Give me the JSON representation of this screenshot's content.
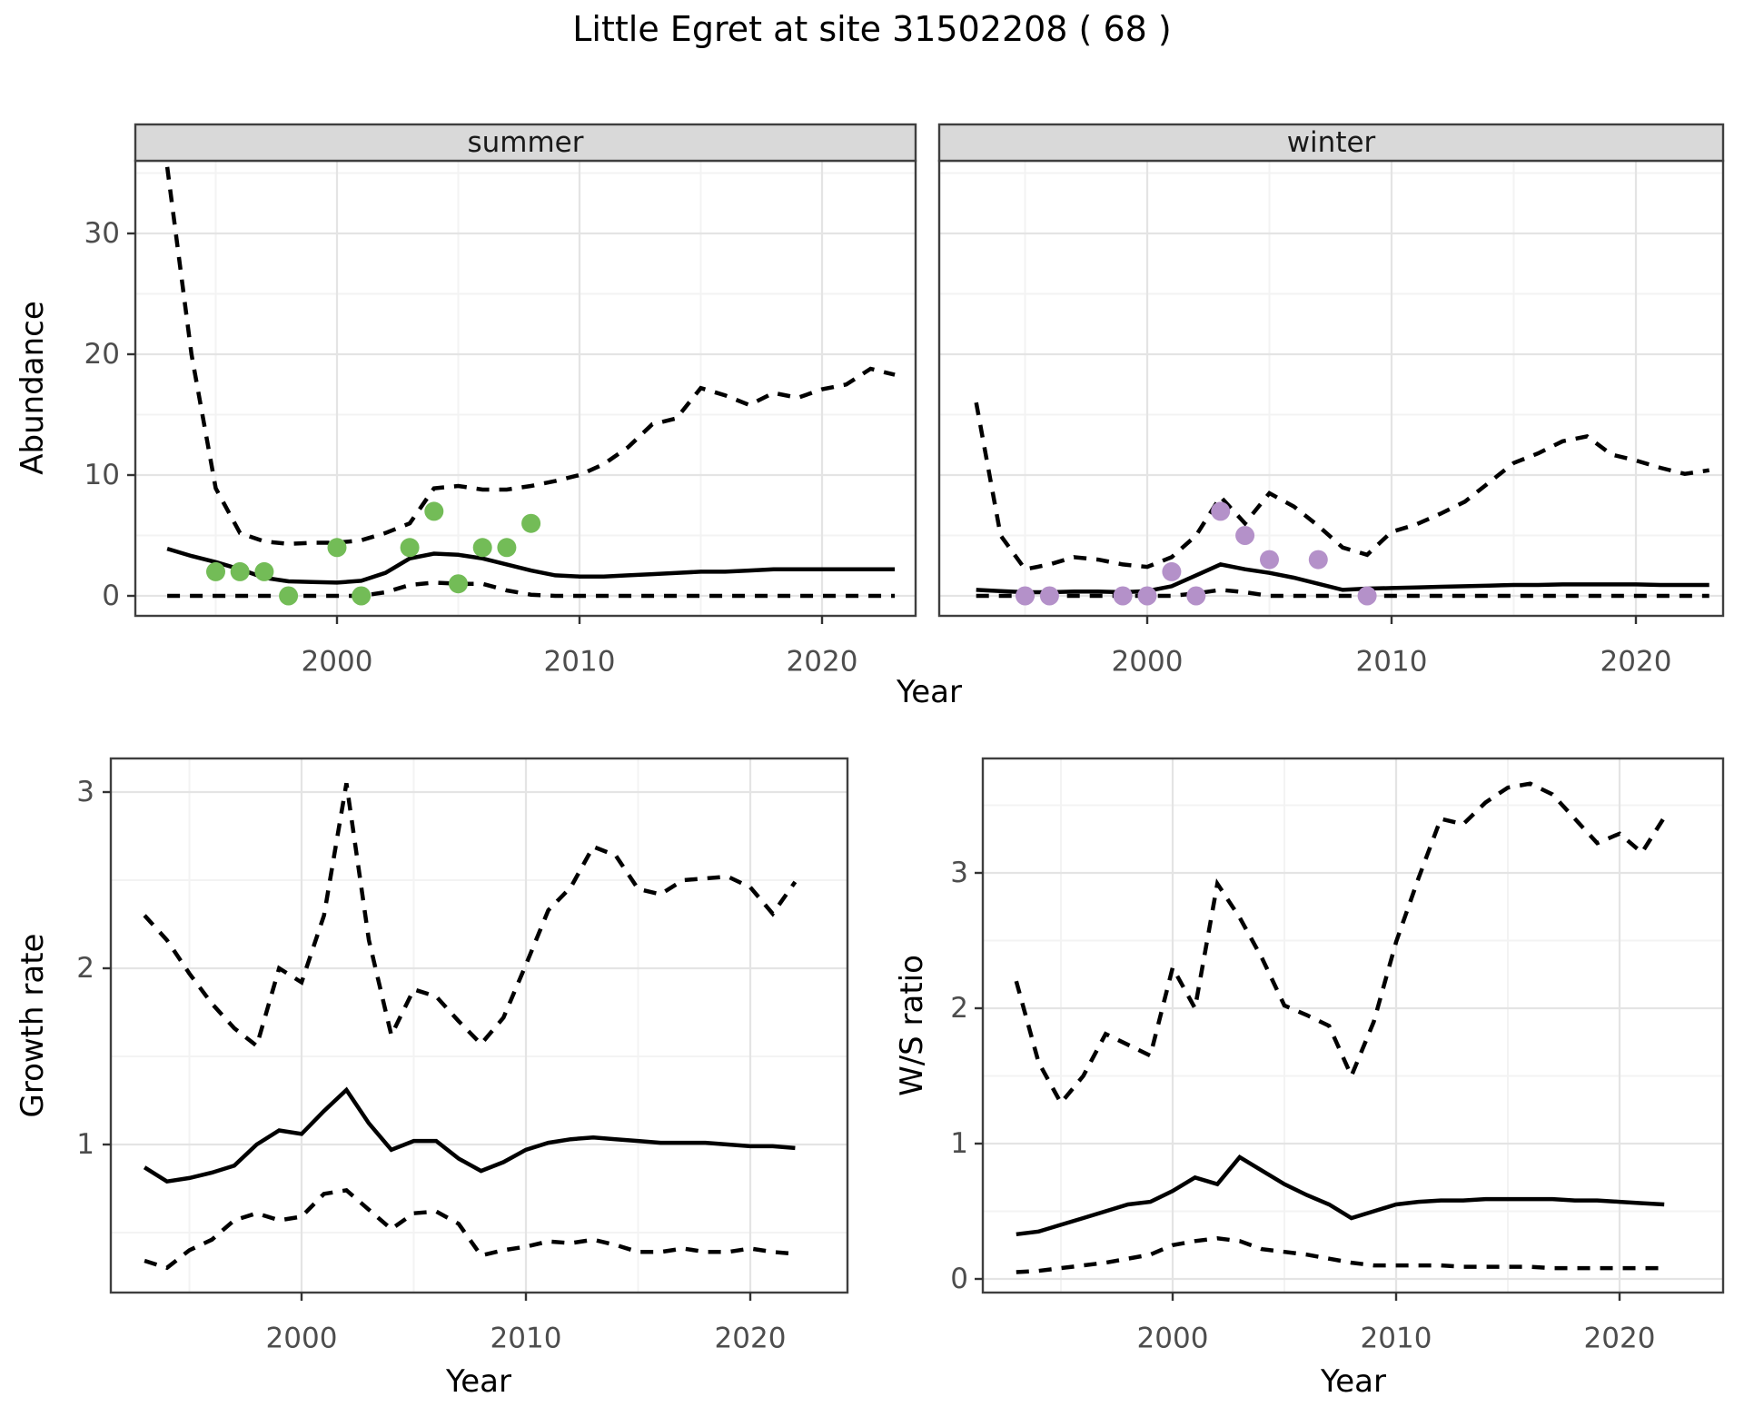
{
  "title": "Little Egret at site 31502208 ( 68 )",
  "axis_titles": {
    "abundance": "Abundance",
    "growth": "Growth rate",
    "ws": "W/S ratio",
    "year_top": "Year",
    "year_bottom_left": "Year",
    "year_bottom_right": "Year"
  },
  "colors": {
    "summer_point": "#73BC57",
    "winter_point": "#B491C9",
    "line": "#000000",
    "tick_text": "#4D4D4D",
    "strip_bg": "#D9D9D9",
    "panel_border": "#3F3F3F",
    "grid_major": "#E4E4E4",
    "grid_minor": "#F3F3F3"
  },
  "chart_data": [
    {
      "id": "abundance-summer",
      "type": "line",
      "facet_label": "summer",
      "xlabel": "Year",
      "ylabel": "Abundance",
      "x_ticks": [
        2000,
        2010,
        2020
      ],
      "y_ticks": [
        0,
        10,
        20,
        30
      ],
      "xlim": [
        1991.6,
        2024.0
      ],
      "ylim": [
        -1.65,
        36.0
      ],
      "legend": "none",
      "grid": true,
      "years": [
        1993,
        1994,
        1995,
        1996,
        1997,
        1998,
        1999,
        2000,
        2001,
        2002,
        2003,
        2004,
        2005,
        2006,
        2007,
        2008,
        2009,
        2010,
        2011,
        2012,
        2013,
        2014,
        2015,
        2016,
        2017,
        2018,
        2019,
        2020,
        2021,
        2022,
        2023
      ],
      "series": [
        {
          "name": "upper_95ci",
          "style": "dashed",
          "values": [
            35.5,
            20.0,
            8.9,
            5.2,
            4.5,
            4.3,
            4.4,
            4.4,
            4.6,
            5.2,
            6.0,
            8.9,
            9.1,
            8.8,
            8.8,
            9.1,
            9.5,
            10.0,
            10.9,
            12.3,
            14.2,
            14.7,
            17.2,
            16.6,
            15.8,
            16.8,
            16.4,
            17.1,
            17.5,
            18.8,
            18.3
          ]
        },
        {
          "name": "median",
          "style": "solid",
          "values": [
            3.9,
            3.3,
            2.8,
            2.2,
            1.5,
            1.2,
            1.15,
            1.1,
            1.25,
            1.9,
            3.1,
            3.5,
            3.4,
            3.1,
            2.6,
            2.1,
            1.7,
            1.6,
            1.6,
            1.7,
            1.8,
            1.9,
            2.0,
            2.0,
            2.1,
            2.2,
            2.2,
            2.2,
            2.2,
            2.2,
            2.2
          ]
        },
        {
          "name": "lower_95ci",
          "style": "dashed",
          "values": [
            0,
            0,
            0,
            0,
            0,
            0,
            0,
            0,
            0,
            0.3,
            0.9,
            1.1,
            1.0,
            1.0,
            0.45,
            0.1,
            0,
            0,
            0,
            0,
            0,
            0,
            0,
            0,
            0,
            0,
            0,
            0,
            0,
            0,
            0
          ]
        }
      ],
      "points": {
        "name": "observed_counts",
        "color_key": "summer_point",
        "years": [
          1995,
          1996,
          1997,
          1998,
          2000,
          2001,
          2003,
          2004,
          2005,
          2006,
          2007,
          2008
        ],
        "values": [
          2,
          2,
          2,
          0,
          4,
          0,
          4,
          7,
          1,
          4,
          4,
          6
        ]
      }
    },
    {
      "id": "abundance-winter",
      "type": "line",
      "facet_label": "winter",
      "xlabel": "Year",
      "ylabel": "Abundance",
      "x_ticks": [
        2000,
        2010,
        2020
      ],
      "y_ticks": [
        0,
        10,
        20,
        30
      ],
      "xlim": [
        1991.5,
        2023.7
      ],
      "ylim": [
        -1.65,
        36.0
      ],
      "legend": "none",
      "grid": true,
      "years": [
        1993,
        1994,
        1995,
        1996,
        1997,
        1998,
        1999,
        2000,
        2001,
        2002,
        2003,
        2004,
        2005,
        2006,
        2007,
        2008,
        2009,
        2010,
        2011,
        2012,
        2013,
        2014,
        2015,
        2016,
        2017,
        2018,
        2019,
        2020,
        2021,
        2022,
        2023
      ],
      "series": [
        {
          "name": "upper_95ci",
          "style": "dashed",
          "values": [
            16.0,
            5.0,
            2.2,
            2.6,
            3.2,
            3.0,
            2.6,
            2.4,
            3.2,
            5.0,
            8.2,
            6.0,
            8.5,
            7.4,
            5.8,
            4.0,
            3.4,
            5.3,
            5.9,
            6.8,
            7.8,
            9.4,
            11.0,
            11.8,
            12.8,
            13.2,
            11.7,
            11.2,
            10.6,
            10.1,
            10.4
          ]
        },
        {
          "name": "median",
          "style": "solid",
          "values": [
            0.5,
            0.4,
            0.3,
            0.3,
            0.35,
            0.35,
            0.3,
            0.4,
            0.8,
            1.7,
            2.6,
            2.2,
            1.9,
            1.5,
            1.0,
            0.5,
            0.6,
            0.65,
            0.7,
            0.75,
            0.8,
            0.85,
            0.9,
            0.9,
            0.95,
            0.95,
            0.95,
            0.95,
            0.9,
            0.9,
            0.9
          ]
        },
        {
          "name": "lower_95ci",
          "style": "dashed",
          "values": [
            0,
            0,
            0,
            0,
            0,
            0,
            0,
            0,
            0,
            0.2,
            0.5,
            0.3,
            0,
            0,
            0,
            0,
            0,
            0,
            0,
            0,
            0,
            0,
            0,
            0,
            0,
            0,
            0,
            0,
            0,
            0,
            0
          ]
        }
      ],
      "points": {
        "name": "observed_counts",
        "color_key": "winter_point",
        "years": [
          1995,
          1996,
          1999,
          2000,
          2001,
          2002,
          2003,
          2004,
          2005,
          2007,
          2009
        ],
        "values": [
          0,
          0,
          0,
          0,
          2,
          0,
          7,
          5,
          3,
          3,
          0
        ]
      }
    },
    {
      "id": "growth-rate",
      "type": "line",
      "facet_label": null,
      "xlabel": "Year",
      "ylabel": "Growth rate",
      "x_ticks": [
        2000,
        2010,
        2020
      ],
      "y_ticks": [
        1,
        2,
        3
      ],
      "xlim": [
        1991.5,
        2024.3
      ],
      "ylim": [
        0.16,
        3.19
      ],
      "legend": "none",
      "grid": true,
      "years": [
        1993,
        1994,
        1995,
        1996,
        1997,
        1998,
        1999,
        2000,
        2001,
        2002,
        2003,
        2004,
        2005,
        2006,
        2007,
        2008,
        2009,
        2010,
        2011,
        2012,
        2013,
        2014,
        2015,
        2016,
        2017,
        2018,
        2019,
        2020,
        2021,
        2022
      ],
      "series": [
        {
          "name": "upper_95ci",
          "style": "dashed",
          "values": [
            2.3,
            2.16,
            1.97,
            1.8,
            1.66,
            1.56,
            2.0,
            1.92,
            2.3,
            3.05,
            2.16,
            1.62,
            1.88,
            1.84,
            1.7,
            1.57,
            1.72,
            2.02,
            2.33,
            2.46,
            2.69,
            2.64,
            2.45,
            2.42,
            2.5,
            2.51,
            2.52,
            2.46,
            2.31,
            2.49
          ]
        },
        {
          "name": "median",
          "style": "solid",
          "values": [
            0.87,
            0.79,
            0.81,
            0.84,
            0.88,
            1.0,
            1.08,
            1.06,
            1.19,
            1.31,
            1.12,
            0.97,
            1.02,
            1.02,
            0.92,
            0.85,
            0.9,
            0.97,
            1.01,
            1.03,
            1.04,
            1.03,
            1.02,
            1.01,
            1.01,
            1.01,
            1.0,
            0.99,
            0.99,
            0.98
          ]
        },
        {
          "name": "lower_95ci",
          "style": "dashed",
          "values": [
            0.34,
            0.3,
            0.4,
            0.46,
            0.57,
            0.61,
            0.57,
            0.59,
            0.72,
            0.74,
            0.63,
            0.52,
            0.61,
            0.62,
            0.55,
            0.37,
            0.4,
            0.42,
            0.45,
            0.44,
            0.46,
            0.43,
            0.39,
            0.39,
            0.41,
            0.39,
            0.39,
            0.41,
            0.39,
            0.38
          ]
        }
      ],
      "points": null
    },
    {
      "id": "ws-ratio",
      "type": "line",
      "facet_label": null,
      "xlabel": "Year",
      "ylabel": "W/S ratio",
      "x_ticks": [
        2000,
        2010,
        2020
      ],
      "y_ticks": [
        0,
        1,
        2,
        3
      ],
      "xlim": [
        1991.5,
        2024.6
      ],
      "ylim": [
        -0.1,
        3.85
      ],
      "legend": "none",
      "grid": true,
      "years": [
        1993,
        1994,
        1995,
        1996,
        1997,
        1998,
        1999,
        2000,
        2001,
        2002,
        2003,
        2004,
        2005,
        2006,
        2007,
        2008,
        2009,
        2010,
        2011,
        2012,
        2013,
        2014,
        2015,
        2016,
        2017,
        2018,
        2019,
        2020,
        2021,
        2022
      ],
      "series": [
        {
          "name": "upper_95ci",
          "style": "dashed",
          "values": [
            2.2,
            1.6,
            1.3,
            1.5,
            1.81,
            1.73,
            1.65,
            2.3,
            2.0,
            2.92,
            2.67,
            2.37,
            2.02,
            1.95,
            1.87,
            1.5,
            1.9,
            2.49,
            2.96,
            3.4,
            3.36,
            3.52,
            3.63,
            3.66,
            3.58,
            3.4,
            3.22,
            3.29,
            3.15,
            3.41
          ]
        },
        {
          "name": "median",
          "style": "solid",
          "values": [
            0.33,
            0.35,
            0.4,
            0.45,
            0.5,
            0.55,
            0.57,
            0.65,
            0.75,
            0.7,
            0.9,
            0.8,
            0.7,
            0.62,
            0.55,
            0.45,
            0.5,
            0.55,
            0.57,
            0.58,
            0.58,
            0.59,
            0.59,
            0.59,
            0.59,
            0.58,
            0.58,
            0.57,
            0.56,
            0.55
          ]
        },
        {
          "name": "lower_95ci",
          "style": "dashed",
          "values": [
            0.05,
            0.06,
            0.08,
            0.1,
            0.12,
            0.15,
            0.18,
            0.25,
            0.28,
            0.3,
            0.28,
            0.22,
            0.2,
            0.18,
            0.15,
            0.12,
            0.1,
            0.1,
            0.1,
            0.1,
            0.09,
            0.09,
            0.09,
            0.09,
            0.08,
            0.08,
            0.08,
            0.08,
            0.08,
            0.08
          ]
        }
      ],
      "points": null
    }
  ]
}
